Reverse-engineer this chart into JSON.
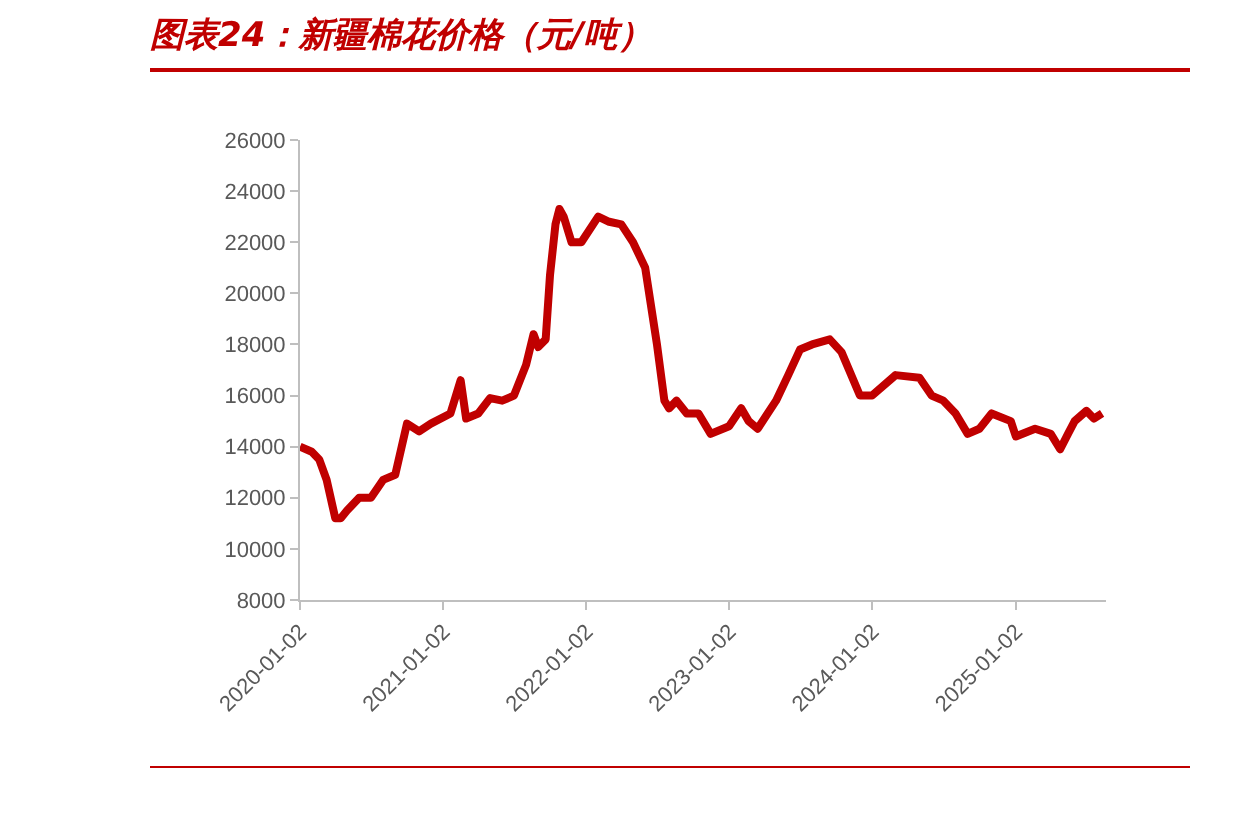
{
  "chart_data": {
    "type": "line",
    "title": "图表24：新疆棉花价格（元/吨）",
    "x": [
      "2020-01-02",
      "2020-02-01",
      "2020-02-20",
      "2020-03-10",
      "2020-04-01",
      "2020-04-15",
      "2020-05-01",
      "2020-06-01",
      "2020-07-01",
      "2020-08-01",
      "2020-09-01",
      "2020-10-01",
      "2020-11-01",
      "2020-12-01",
      "2021-01-20",
      "2021-02-15",
      "2021-03-01",
      "2021-04-01",
      "2021-05-01",
      "2021-06-01",
      "2021-07-01",
      "2021-08-01",
      "2021-08-20",
      "2021-09-01",
      "2021-09-20",
      "2021-10-01",
      "2021-10-15",
      "2021-10-25",
      "2021-11-05",
      "2021-11-25",
      "2021-12-20",
      "2022-02-01",
      "2022-03-01",
      "2022-04-01",
      "2022-05-01",
      "2022-06-01",
      "2022-07-01",
      "2022-07-20",
      "2022-08-01",
      "2022-08-20",
      "2022-09-15",
      "2022-10-15",
      "2022-11-15",
      "2023-01-01",
      "2023-02-01",
      "2023-02-20",
      "2023-03-15",
      "2023-05-01",
      "2023-06-01",
      "2023-07-01",
      "2023-08-01",
      "2023-09-15",
      "2023-10-15",
      "2023-12-01",
      "2024-01-01",
      "2024-03-01",
      "2024-05-01",
      "2024-06-01",
      "2024-07-01",
      "2024-08-01",
      "2024-09-01",
      "2024-10-01",
      "2024-11-01",
      "2024-12-20",
      "2025-01-02",
      "2025-02-20",
      "2025-04-01",
      "2025-04-25",
      "2025-05-15",
      "2025-06-01",
      "2025-07-01",
      "2025-07-20",
      "2025-08-10"
    ],
    "series": [
      {
        "color": "#c00000",
        "values": [
          14000,
          13800,
          13500,
          12700,
          11200,
          11200,
          11500,
          12000,
          12000,
          12700,
          12900,
          14900,
          14600,
          14900,
          15300,
          16600,
          15100,
          15300,
          15900,
          15800,
          16000,
          17200,
          18400,
          17900,
          18200,
          20700,
          22700,
          23300,
          23000,
          22000,
          22000,
          23000,
          22800,
          22700,
          22000,
          21000,
          18000,
          15800,
          15500,
          15800,
          15300,
          15300,
          14500,
          14800,
          15500,
          15000,
          14700,
          15800,
          16800,
          17800,
          18000,
          18200,
          17700,
          16000,
          16000,
          16800,
          16700,
          16000,
          15800,
          15300,
          14500,
          14700,
          15300,
          15000,
          14400,
          14700,
          14500,
          13900,
          14500,
          15000,
          15400,
          15100,
          15300
        ]
      }
    ],
    "xlim": [
      "2020-01-02",
      "2025-08-20"
    ],
    "xticks": [
      "2020-01-02",
      "2021-01-02",
      "2022-01-02",
      "2023-01-02",
      "2024-01-02",
      "2025-01-02"
    ],
    "ylim": [
      8000,
      26000
    ],
    "yticks": [
      8000,
      10000,
      12000,
      14000,
      16000,
      18000,
      20000,
      22000,
      24000,
      26000
    ],
    "grid": false,
    "marker": "none",
    "line_style": "solid"
  }
}
